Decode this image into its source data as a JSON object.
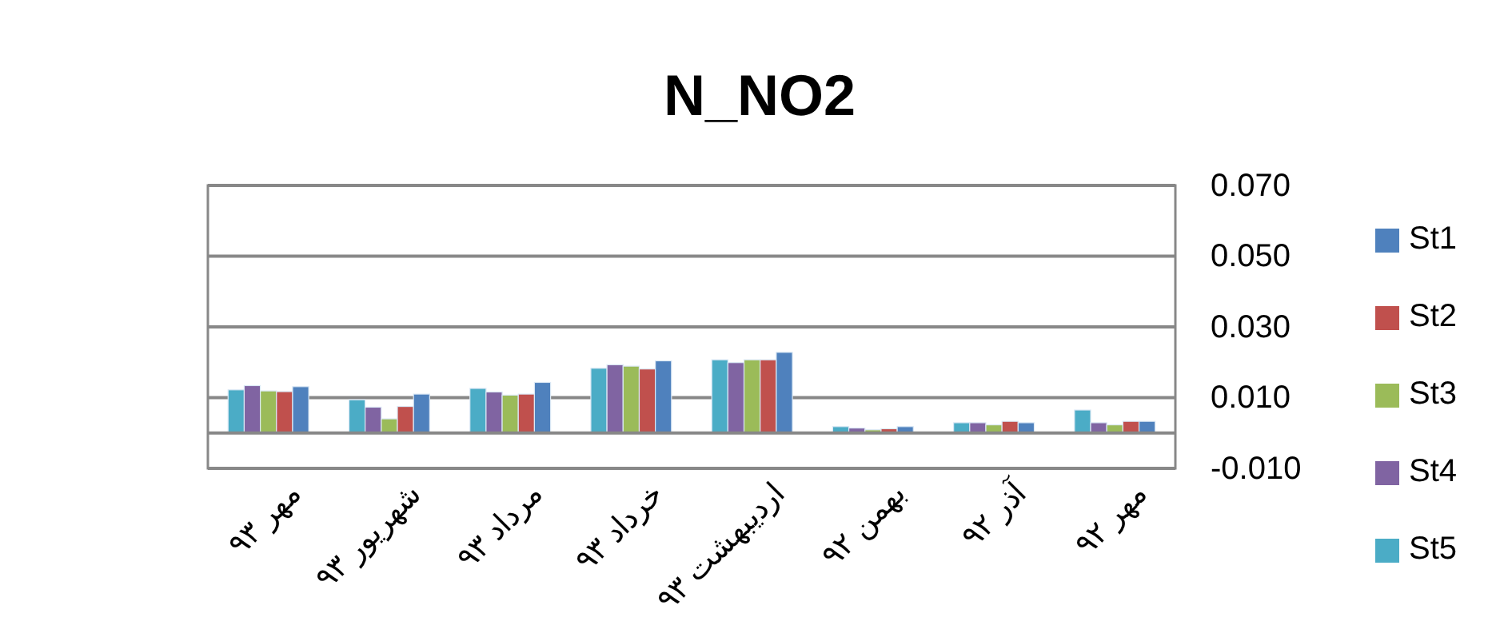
{
  "chart_data": {
    "type": "bar",
    "title": "N_NO2",
    "categories": [
      "مهر ۹۳",
      "شهریور ۹۳",
      "مرداد ۹۳",
      "خرداد ۹۳",
      "اردیبهشت ۹۳",
      "بهمن ۹۲",
      "آذر ۹۲",
      "مهر ۹۲"
    ],
    "series": [
      {
        "name": "St5",
        "color": "#4bacc6",
        "values": [
          0.0122,
          0.0094,
          0.0126,
          0.0183,
          0.0207,
          0.0018,
          0.0029,
          0.0065
        ]
      },
      {
        "name": "St4",
        "color": "#8064a2",
        "values": [
          0.0134,
          0.0073,
          0.0116,
          0.0193,
          0.0199,
          0.0014,
          0.0029,
          0.0029
        ]
      },
      {
        "name": "St3",
        "color": "#9bbb59",
        "values": [
          0.0119,
          0.004,
          0.0107,
          0.0189,
          0.0207,
          0.0009,
          0.0023,
          0.0023
        ]
      },
      {
        "name": "St2",
        "color": "#c0504d",
        "values": [
          0.0117,
          0.0075,
          0.011,
          0.0181,
          0.0207,
          0.0012,
          0.0033,
          0.0033
        ]
      },
      {
        "name": "St1",
        "color": "#4f81bd",
        "values": [
          0.0131,
          0.011,
          0.0143,
          0.0204,
          0.0228,
          0.0018,
          0.0029,
          0.0033
        ]
      }
    ],
    "ylim": [
      -0.01,
      0.07
    ],
    "yticks": [
      {
        "value": 0.07,
        "label": "0.070"
      },
      {
        "value": 0.05,
        "label": "0.050"
      },
      {
        "value": 0.03,
        "label": "0.030"
      },
      {
        "value": 0.01,
        "label": "0.010"
      },
      {
        "value": -0.01,
        "label": "-0.010"
      }
    ],
    "grid": "y",
    "legend": "right"
  }
}
